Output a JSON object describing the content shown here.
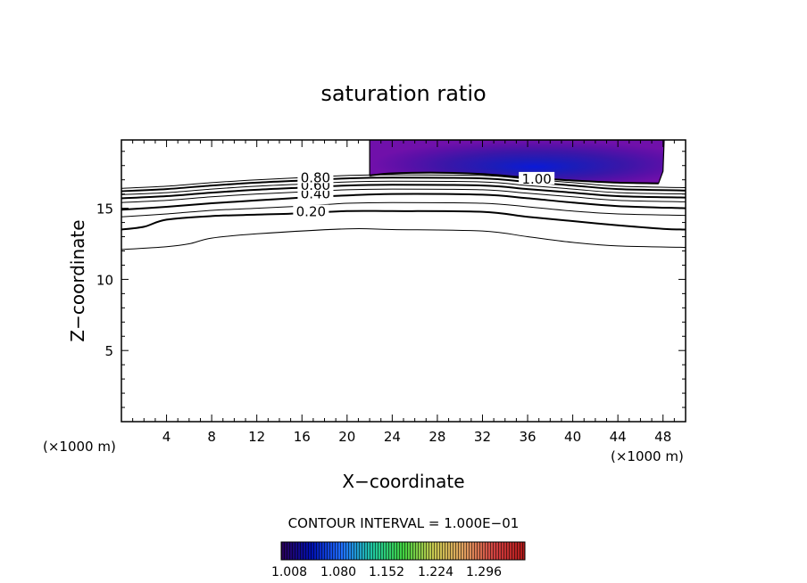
{
  "chart_data": {
    "type": "contour",
    "title": "saturation ratio",
    "xlabel": "X−coordinate",
    "ylabel": "Z−coordinate",
    "x_unit_left": "(×1000 m)",
    "x_unit_right": "(×1000 m)",
    "xlim": [
      0,
      50
    ],
    "ylim": [
      0,
      19.8
    ],
    "x_ticks": [
      4,
      8,
      12,
      16,
      20,
      24,
      28,
      32,
      36,
      40,
      44,
      48
    ],
    "y_ticks": [
      5,
      10,
      15
    ],
    "x_ticks_text": [
      "4",
      "8",
      "12",
      "16",
      "20",
      "24",
      "28",
      "32",
      "36",
      "40",
      "44",
      "48"
    ],
    "y_ticks_text": [
      "5",
      "10",
      "15"
    ],
    "contour_interval_text": "CONTOUR INTERVAL = 1.000E−01",
    "colorbar": {
      "tick_labels": [
        "1.008",
        "1.080",
        "1.152",
        "1.224",
        "1.296"
      ],
      "colors": [
        "#2a0055",
        "#0010b0",
        "#2070ff",
        "#20c8a0",
        "#40d040",
        "#c8c850",
        "#e0a060",
        "#d04040",
        "#b01818"
      ]
    },
    "contour_lines": [
      {
        "level": 0.1,
        "bold": false,
        "points": [
          [
            0,
            12.1
          ],
          [
            4,
            12.3
          ],
          [
            6,
            12.5
          ],
          [
            8,
            12.9
          ],
          [
            12,
            13.2
          ],
          [
            20,
            13.55
          ],
          [
            24,
            13.5
          ],
          [
            32,
            13.4
          ],
          [
            36,
            13.0
          ],
          [
            40,
            12.6
          ],
          [
            44,
            12.35
          ],
          [
            50,
            12.25
          ]
        ]
      },
      {
        "level": 0.2,
        "bold": true,
        "label": "0.20",
        "label_at": [
          16.8,
          14.75
        ],
        "points": [
          [
            0,
            13.5
          ],
          [
            2,
            13.7
          ],
          [
            4,
            14.2
          ],
          [
            8,
            14.45
          ],
          [
            12,
            14.55
          ],
          [
            16,
            14.65
          ],
          [
            20,
            14.8
          ],
          [
            24,
            14.8
          ],
          [
            32,
            14.75
          ],
          [
            36,
            14.4
          ],
          [
            40,
            14.1
          ],
          [
            44,
            13.8
          ],
          [
            48,
            13.55
          ],
          [
            50,
            13.5
          ]
        ]
      },
      {
        "level": 0.3,
        "bold": false,
        "points": [
          [
            0,
            14.4
          ],
          [
            4,
            14.6
          ],
          [
            8,
            14.85
          ],
          [
            12,
            15.0
          ],
          [
            16,
            15.15
          ],
          [
            20,
            15.35
          ],
          [
            24,
            15.4
          ],
          [
            32,
            15.35
          ],
          [
            36,
            15.1
          ],
          [
            40,
            14.8
          ],
          [
            44,
            14.6
          ],
          [
            50,
            14.5
          ]
        ]
      },
      {
        "level": 0.4,
        "bold": true,
        "label": "0.40",
        "label_at": [
          17.2,
          16.0
        ],
        "points": [
          [
            0,
            14.9
          ],
          [
            4,
            15.1
          ],
          [
            8,
            15.35
          ],
          [
            12,
            15.55
          ],
          [
            16,
            15.75
          ],
          [
            20,
            15.9
          ],
          [
            24,
            16.0
          ],
          [
            32,
            15.95
          ],
          [
            36,
            15.7
          ],
          [
            40,
            15.4
          ],
          [
            44,
            15.15
          ],
          [
            50,
            15.0
          ]
        ]
      },
      {
        "level": 0.5,
        "bold": false,
        "points": [
          [
            0,
            15.4
          ],
          [
            4,
            15.55
          ],
          [
            8,
            15.8
          ],
          [
            12,
            16.0
          ],
          [
            16,
            16.15
          ],
          [
            20,
            16.3
          ],
          [
            24,
            16.35
          ],
          [
            32,
            16.3
          ],
          [
            36,
            16.05
          ],
          [
            40,
            15.8
          ],
          [
            44,
            15.55
          ],
          [
            50,
            15.45
          ]
        ]
      },
      {
        "level": 0.6,
        "bold": true,
        "label": "0.60",
        "label_at": [
          17.2,
          16.6
        ],
        "points": [
          [
            0,
            15.7
          ],
          [
            4,
            15.85
          ],
          [
            8,
            16.1
          ],
          [
            12,
            16.3
          ],
          [
            16,
            16.45
          ],
          [
            20,
            16.6
          ],
          [
            24,
            16.65
          ],
          [
            32,
            16.6
          ],
          [
            36,
            16.35
          ],
          [
            40,
            16.1
          ],
          [
            44,
            15.85
          ],
          [
            50,
            15.75
          ]
        ]
      },
      {
        "level": 0.7,
        "bold": false,
        "points": [
          [
            0,
            15.95
          ],
          [
            4,
            16.1
          ],
          [
            8,
            16.35
          ],
          [
            12,
            16.55
          ],
          [
            16,
            16.7
          ],
          [
            20,
            16.85
          ],
          [
            24,
            16.9
          ],
          [
            32,
            16.85
          ],
          [
            36,
            16.6
          ],
          [
            40,
            16.35
          ],
          [
            44,
            16.1
          ],
          [
            50,
            16.0
          ]
        ]
      },
      {
        "level": 0.8,
        "bold": true,
        "label": "0.80",
        "label_at": [
          17.2,
          17.15
        ],
        "points": [
          [
            0,
            16.2
          ],
          [
            4,
            16.35
          ],
          [
            8,
            16.6
          ],
          [
            12,
            16.8
          ],
          [
            16,
            16.95
          ],
          [
            20,
            17.1
          ],
          [
            24,
            17.15
          ],
          [
            32,
            17.1
          ],
          [
            36,
            16.85
          ],
          [
            40,
            16.6
          ],
          [
            44,
            16.35
          ],
          [
            50,
            16.25
          ]
        ]
      },
      {
        "level": 0.9,
        "bold": false,
        "points": [
          [
            0,
            16.4
          ],
          [
            4,
            16.55
          ],
          [
            8,
            16.8
          ],
          [
            12,
            17.0
          ],
          [
            16,
            17.15
          ],
          [
            20,
            17.3
          ],
          [
            24,
            17.35
          ],
          [
            32,
            17.3
          ],
          [
            36,
            17.05
          ],
          [
            40,
            16.8
          ],
          [
            44,
            16.55
          ],
          [
            50,
            16.45
          ]
        ]
      },
      {
        "level": 1.0,
        "bold": true,
        "label": "1.00",
        "label_at": [
          36.8,
          17.05
        ],
        "points": [
          [
            22.0,
            17.3
          ],
          [
            24,
            17.45
          ],
          [
            28,
            17.5
          ],
          [
            32,
            17.4
          ],
          [
            36,
            17.15
          ],
          [
            40,
            16.95
          ],
          [
            44,
            16.8
          ],
          [
            47.6,
            16.75
          ]
        ]
      }
    ],
    "shaded_region": {
      "description_values": "supersaturated region (ratio > 1.0)",
      "x_range": [
        22.0,
        48.0
      ],
      "top": 19.8
    }
  }
}
